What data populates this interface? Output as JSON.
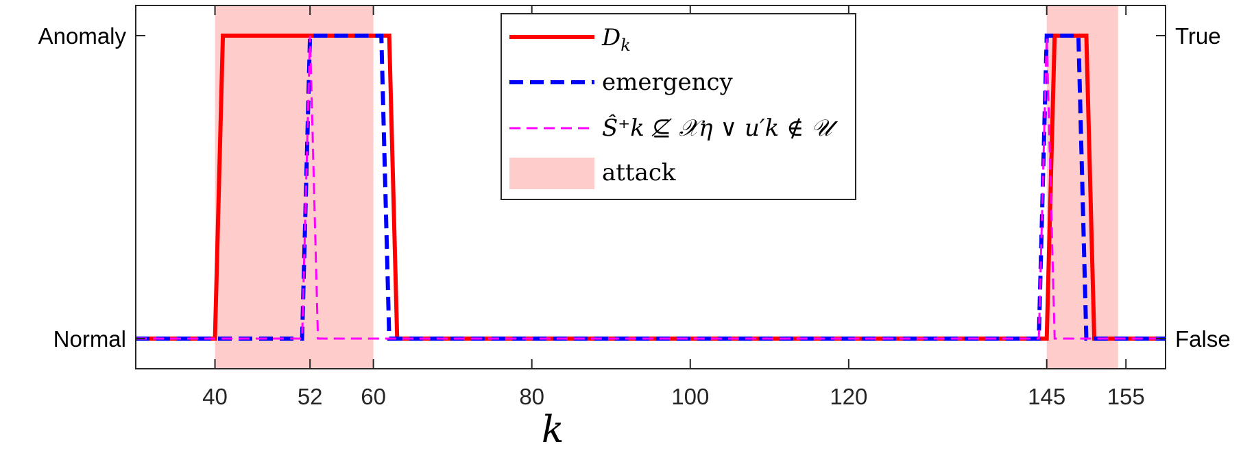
{
  "chart_data": {
    "type": "line",
    "title": "",
    "xlabel": "k",
    "ylabel": "",
    "xlim": [
      30,
      160
    ],
    "ylim": [
      0,
      1
    ],
    "x_ticks": [
      40,
      52,
      60,
      80,
      100,
      120,
      145,
      155
    ],
    "y_left_labels": {
      "low": "Normal",
      "high": "Anomaly"
    },
    "y_right_labels": {
      "low": "False",
      "high": "True"
    },
    "grid": false,
    "legend_position": "top-center",
    "attack_intervals": [
      [
        40,
        60
      ],
      [
        145,
        154
      ]
    ],
    "series": [
      {
        "name": "D_k",
        "style": "solid",
        "color": "#ff0000",
        "points": [
          [
            30,
            0
          ],
          [
            40,
            0
          ],
          [
            41,
            1
          ],
          [
            62,
            1
          ],
          [
            63,
            0
          ],
          [
            145,
            0
          ],
          [
            146,
            1
          ],
          [
            150,
            1
          ],
          [
            151,
            0
          ],
          [
            160,
            0
          ]
        ]
      },
      {
        "name": "emergency",
        "style": "dashed",
        "color": "#0000ff",
        "points": [
          [
            30,
            0
          ],
          [
            51,
            0
          ],
          [
            52,
            1
          ],
          [
            61,
            1
          ],
          [
            62,
            0
          ],
          [
            144,
            0
          ],
          [
            145,
            1
          ],
          [
            149,
            1
          ],
          [
            150,
            0
          ],
          [
            160,
            0
          ]
        ]
      },
      {
        "name": "Ŝ_k⁺ ⊈ 𝒳_η ∨ u′_k ∉ 𝒰",
        "style": "dashed",
        "color": "#ff00ff",
        "points": [
          [
            30,
            0
          ],
          [
            51,
            0
          ],
          [
            52,
            1
          ],
          [
            53,
            0
          ],
          [
            144,
            0
          ],
          [
            145,
            1
          ],
          [
            146,
            0
          ],
          [
            160,
            0
          ]
        ]
      }
    ],
    "legend": [
      {
        "key": "dk",
        "label_main": "D",
        "label_sub": "k"
      },
      {
        "key": "emergency",
        "label": "emergency"
      },
      {
        "key": "condition",
        "label": "Ŝ⁺k ⊈ 𝒳η ∨ u′k ∉ 𝒰"
      },
      {
        "key": "attack",
        "label": "attack"
      }
    ],
    "colors": {
      "attack_fill": "#ffcccc",
      "dk": "#ff0000",
      "emergency": "#0000ff",
      "condition": "#ff00ff"
    }
  }
}
